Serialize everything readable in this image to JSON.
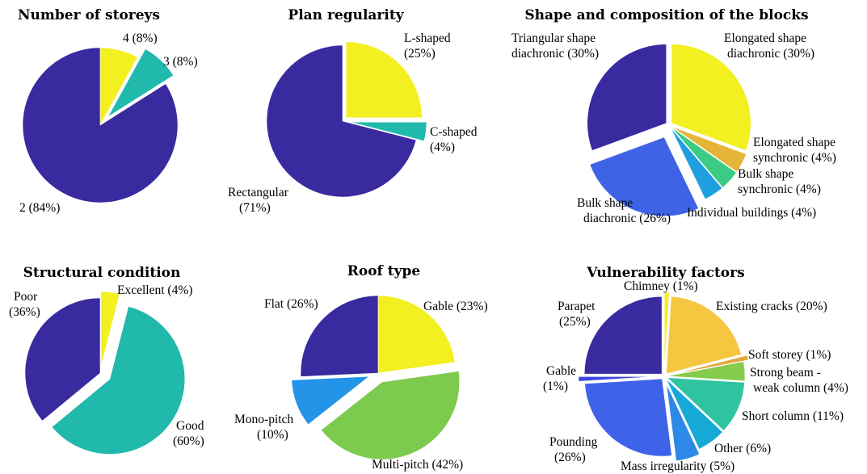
{
  "chart_data": [
    {
      "type": "pie",
      "title": "Number of storeys",
      "start_angle_deg": 0,
      "slices": [
        {
          "label": "4 (8%)",
          "value": 8,
          "color": "#F2F020",
          "exploded": true
        },
        {
          "label": "3 (8%)",
          "value": 8,
          "color": "#22B9AD",
          "exploded": true
        },
        {
          "label": "2 (84%)",
          "value": 84,
          "color": "#3A2AA0",
          "exploded": false
        }
      ]
    },
    {
      "type": "pie",
      "title": "Plan regularity",
      "start_angle_deg": 0,
      "slices": [
        {
          "label": "L-shaped (25%)",
          "value": 25,
          "color": "#F2F020",
          "exploded": true
        },
        {
          "label": "C-shaped (4%)",
          "value": 4,
          "color": "#22B9AD",
          "exploded": true
        },
        {
          "label": "Rectangular (71%)",
          "value": 71,
          "color": "#3A2AA0",
          "exploded": false
        }
      ]
    },
    {
      "type": "pie",
      "title": "Shape and composition of the blocks",
      "start_angle_deg": 0,
      "slices": [
        {
          "label": "Elongated shape diachronic (30%)",
          "value": 30,
          "color": "#F2F020",
          "exploded": false
        },
        {
          "label": "Elongated shape synchronic (4%)",
          "value": 4,
          "color": "#E7B43A",
          "exploded": false
        },
        {
          "label": "Bulk shape synchronic (4%)",
          "value": 4,
          "color": "#3CCB84",
          "exploded": false
        },
        {
          "label": "Individual buildings (4%)",
          "value": 4,
          "color": "#1F9FE0",
          "exploded": false
        },
        {
          "label": "Bulk shape diachronic (26%)",
          "value": 26,
          "color": "#3F63E6",
          "exploded": true
        },
        {
          "label": "Triangular shape diachronic (30%)",
          "value": 30,
          "color": "#3A2AA0",
          "exploded": false
        }
      ]
    },
    {
      "type": "pie",
      "title": "Structural condition",
      "start_angle_deg": 0,
      "slices": [
        {
          "label": "Excellent (4%)",
          "value": 4,
          "color": "#F2F020",
          "exploded": true
        },
        {
          "label": "Good (60%)",
          "value": 60,
          "color": "#22B9AD",
          "exploded": true
        },
        {
          "label": "Poor (36%)",
          "value": 36,
          "color": "#3A2AA0",
          "exploded": false
        }
      ]
    },
    {
      "type": "pie",
      "title": "Roof type",
      "start_angle_deg": 0,
      "slices": [
        {
          "label": "Gable (23%)",
          "value": 23,
          "color": "#F2F020",
          "exploded": false
        },
        {
          "label": "Multi-pitch (42%)",
          "value": 42,
          "color": "#7DCB4E",
          "exploded": true
        },
        {
          "label": "Mono-pitch (10%)",
          "value": 10,
          "color": "#2494E8",
          "exploded": true
        },
        {
          "label": "Flat (26%)",
          "value": 26,
          "color": "#3A2AA0",
          "exploded": false
        }
      ]
    },
    {
      "type": "pie",
      "title": "Vulnerability factors",
      "start_angle_deg": 0,
      "slices": [
        {
          "label": "Chimney (1%)",
          "value": 1,
          "color": "#F2F020",
          "exploded": true
        },
        {
          "label": "Existing cracks (20%)",
          "value": 20,
          "color": "#F7C640",
          "exploded": false
        },
        {
          "label": "Soft storey (1%)",
          "value": 1,
          "color": "#E2A83A",
          "exploded": true
        },
        {
          "label": "Strong beam - weak column (4%)",
          "value": 4,
          "color": "#86CC4C",
          "exploded": false
        },
        {
          "label": "Short column (11%)",
          "value": 11,
          "color": "#2FC3A0",
          "exploded": false
        },
        {
          "label": "Other (6%)",
          "value": 6,
          "color": "#16A9D8",
          "exploded": false
        },
        {
          "label": "Mass irregularity (5%)",
          "value": 5,
          "color": "#2E88E5",
          "exploded": true
        },
        {
          "label": "Pounding (26%)",
          "value": 26,
          "color": "#3E62E8",
          "exploded": false
        },
        {
          "label": "Gable (1%)",
          "value": 1,
          "color": "#4148E0",
          "exploded": true
        },
        {
          "label": "Parapet (25%)",
          "value": 25,
          "color": "#3A2AA0",
          "exploded": false
        }
      ]
    }
  ]
}
